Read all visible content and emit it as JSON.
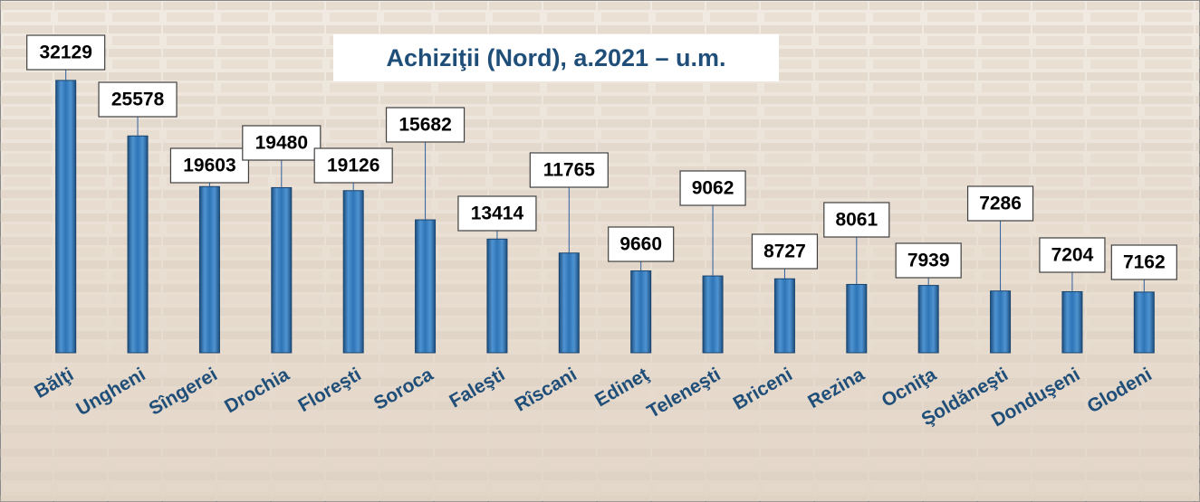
{
  "chart_data": {
    "type": "bar",
    "title": "Achiziţii (Nord), a.2021 – u.m.",
    "categories": [
      "Bălţi",
      "Ungheni",
      "Sîngerei",
      "Drochia",
      "Floreşti",
      "Soroca",
      "Faleşti",
      "Rîscani",
      "Edineţ",
      "Teleneşti",
      "Briceni",
      "Rezina",
      "Ocniţa",
      "Şoldăneşti",
      "Donduşeni",
      "Glodeni"
    ],
    "values": [
      32129,
      25578,
      19603,
      19480,
      19126,
      15682,
      13414,
      11765,
      9660,
      9062,
      8727,
      8061,
      7939,
      7286,
      7204,
      7162
    ],
    "color": "#2e75b6",
    "ylim": [
      0,
      35000
    ]
  }
}
